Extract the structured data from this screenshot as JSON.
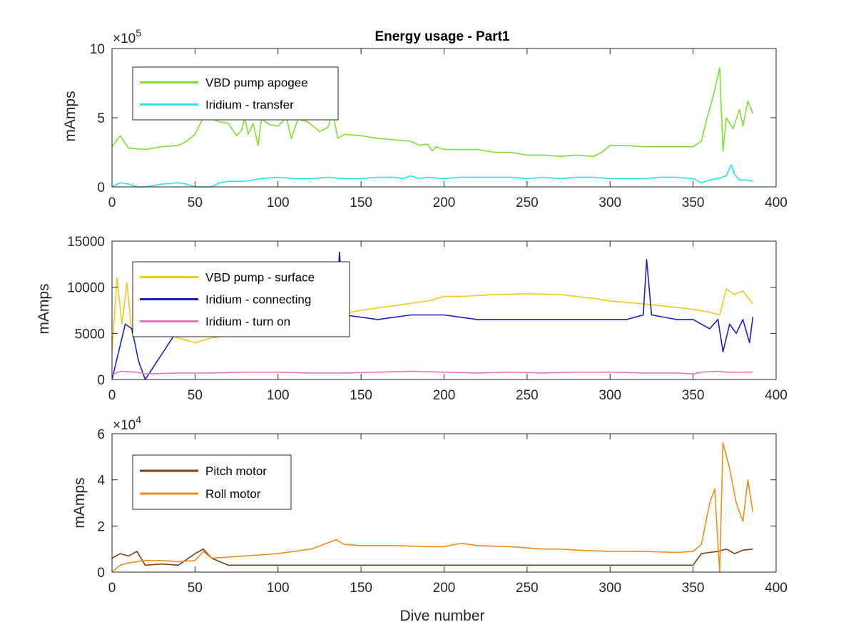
{
  "chart_data": [
    {
      "type": "line",
      "title": "Energy usage - Part1",
      "ylabel": "mAmps",
      "xlabel": "",
      "xlim": [
        0,
        400
      ],
      "ylim": [
        0,
        1000000
      ],
      "scale_multiplier": "×10",
      "scale_exponent": "5",
      "xticks": [
        0,
        50,
        100,
        150,
        200,
        250,
        300,
        350,
        400
      ],
      "yticks": [
        0,
        500000,
        1000000
      ],
      "yticklabels": [
        "0",
        "5",
        "10"
      ],
      "legend_position": "top-left",
      "series": [
        {
          "name": "VBD pump apogee",
          "color": "#7fe02e",
          "x": [
            0,
            5,
            10,
            20,
            30,
            40,
            45,
            50,
            55,
            60,
            65,
            70,
            75,
            78,
            80,
            82,
            85,
            88,
            90,
            95,
            100,
            105,
            108,
            112,
            118,
            125,
            130,
            133,
            136,
            140,
            150,
            160,
            170,
            180,
            185,
            190,
            193,
            195,
            200,
            210,
            220,
            230,
            240,
            250,
            260,
            270,
            280,
            290,
            295,
            300,
            310,
            320,
            330,
            340,
            350,
            355,
            358,
            362,
            366,
            368,
            370,
            374,
            378,
            380,
            383,
            386
          ],
          "values": [
            290000,
            370000,
            280000,
            270000,
            290000,
            300000,
            330000,
            380000,
            500000,
            490000,
            470000,
            460000,
            370000,
            410000,
            500000,
            380000,
            460000,
            300000,
            490000,
            450000,
            440000,
            500000,
            350000,
            490000,
            470000,
            400000,
            430000,
            540000,
            350000,
            380000,
            370000,
            350000,
            340000,
            330000,
            300000,
            310000,
            260000,
            290000,
            270000,
            270000,
            270000,
            250000,
            250000,
            230000,
            230000,
            220000,
            230000,
            220000,
            250000,
            300000,
            300000,
            290000,
            290000,
            290000,
            290000,
            330000,
            480000,
            650000,
            860000,
            260000,
            500000,
            420000,
            560000,
            440000,
            620000,
            530000
          ]
        },
        {
          "name": "Iridium - transfer",
          "color": "#22e6f0",
          "x": [
            0,
            5,
            10,
            15,
            20,
            30,
            40,
            45,
            50,
            55,
            60,
            65,
            70,
            80,
            90,
            100,
            110,
            120,
            130,
            140,
            150,
            160,
            170,
            175,
            180,
            185,
            190,
            200,
            210,
            220,
            230,
            240,
            250,
            260,
            270,
            280,
            290,
            300,
            310,
            320,
            330,
            340,
            350,
            355,
            360,
            365,
            370,
            373,
            375,
            378,
            382,
            386
          ],
          "values": [
            0,
            30000,
            20000,
            0,
            0,
            20000,
            30000,
            20000,
            0,
            0,
            0,
            30000,
            40000,
            40000,
            60000,
            70000,
            60000,
            60000,
            70000,
            60000,
            60000,
            70000,
            70000,
            60000,
            80000,
            60000,
            70000,
            60000,
            70000,
            70000,
            70000,
            70000,
            60000,
            70000,
            60000,
            70000,
            70000,
            60000,
            60000,
            60000,
            70000,
            70000,
            60000,
            30000,
            50000,
            60000,
            80000,
            160000,
            90000,
            50000,
            50000,
            40000
          ]
        }
      ]
    },
    {
      "type": "line",
      "title": "",
      "ylabel": "mAmps",
      "xlabel": "",
      "xlim": [
        0,
        400
      ],
      "ylim": [
        0,
        15000
      ],
      "xticks": [
        0,
        50,
        100,
        150,
        200,
        250,
        300,
        350,
        400
      ],
      "yticks": [
        0,
        5000,
        10000,
        15000
      ],
      "yticklabels": [
        "0",
        "5000",
        "10000",
        "15000"
      ],
      "legend_position": "top-left",
      "series": [
        {
          "name": "VBD pump - surface",
          "color": "#f2c91a",
          "x": [
            0,
            3,
            6,
            9,
            12,
            15,
            20,
            30,
            40,
            50,
            60,
            80,
            100,
            120,
            135,
            150,
            170,
            190,
            200,
            210,
            230,
            250,
            270,
            290,
            300,
            320,
            340,
            350,
            360,
            366,
            370,
            375,
            380,
            386
          ],
          "values": [
            3000,
            11000,
            6000,
            10500,
            5000,
            8000,
            5000,
            5000,
            4500,
            4000,
            4500,
            5000,
            6000,
            6500,
            7000,
            7500,
            8000,
            8500,
            9000,
            9000,
            9200,
            9300,
            9200,
            8800,
            8500,
            8200,
            7800,
            7600,
            7300,
            7000,
            9800,
            9200,
            9600,
            8200
          ]
        },
        {
          "name": "Iridium - connecting",
          "color": "#1c1ec2",
          "x": [
            0,
            4,
            8,
            12,
            16,
            20,
            40,
            60,
            80,
            100,
            120,
            135,
            137,
            140,
            160,
            180,
            200,
            220,
            240,
            260,
            280,
            300,
            310,
            320,
            322,
            325,
            340,
            350,
            355,
            360,
            365,
            368,
            372,
            376,
            380,
            384,
            386
          ],
          "values": [
            0,
            3000,
            6000,
            5500,
            2000,
            0,
            5500,
            6000,
            6500,
            7000,
            7000,
            7500,
            13800,
            7000,
            6500,
            7000,
            7000,
            6500,
            6500,
            6500,
            6500,
            6500,
            6500,
            7000,
            13000,
            7000,
            6500,
            6500,
            6000,
            5500,
            6500,
            3000,
            6000,
            5000,
            6500,
            4000,
            6800
          ]
        },
        {
          "name": "Iridium - turn on",
          "color": "#e873c4",
          "x": [
            0,
            5,
            15,
            20,
            40,
            60,
            80,
            100,
            120,
            140,
            160,
            180,
            200,
            220,
            240,
            260,
            280,
            300,
            320,
            340,
            350,
            355,
            365,
            370,
            380,
            386
          ],
          "values": [
            500,
            900,
            800,
            600,
            700,
            700,
            800,
            800,
            700,
            700,
            800,
            900,
            800,
            700,
            800,
            700,
            800,
            800,
            700,
            700,
            600,
            800,
            900,
            800,
            800,
            800
          ]
        }
      ]
    },
    {
      "type": "line",
      "title": "",
      "ylabel": "mAmps",
      "xlabel": "Dive number",
      "xlim": [
        0,
        400
      ],
      "ylim": [
        0,
        60000
      ],
      "scale_multiplier": "×10",
      "scale_exponent": "4",
      "xticks": [
        0,
        50,
        100,
        150,
        200,
        250,
        300,
        350,
        400
      ],
      "yticks": [
        0,
        20000,
        40000,
        60000
      ],
      "yticklabels": [
        "0",
        "2",
        "4",
        "6"
      ],
      "legend_position": "top-left",
      "series": [
        {
          "name": "Pitch motor",
          "color": "#7b3f12",
          "x": [
            0,
            5,
            10,
            15,
            20,
            30,
            40,
            50,
            55,
            60,
            70,
            80,
            100,
            120,
            140,
            160,
            180,
            200,
            220,
            240,
            260,
            280,
            300,
            320,
            340,
            350,
            355,
            360,
            365,
            370,
            375,
            380,
            386
          ],
          "values": [
            6000,
            8000,
            7000,
            9000,
            3000,
            3500,
            3000,
            8000,
            10000,
            6000,
            3000,
            3000,
            3000,
            3000,
            3000,
            3000,
            3000,
            3000,
            3000,
            3000,
            3000,
            3000,
            3000,
            3000,
            3000,
            3000,
            8000,
            8500,
            9000,
            10000,
            8000,
            9500,
            10000
          ]
        },
        {
          "name": "Roll motor",
          "color": "#ee8e1a",
          "x": [
            0,
            5,
            10,
            20,
            30,
            40,
            50,
            55,
            60,
            70,
            80,
            100,
            120,
            135,
            140,
            150,
            170,
            190,
            200,
            210,
            220,
            240,
            260,
            270,
            280,
            300,
            320,
            340,
            350,
            355,
            360,
            363,
            366,
            368,
            372,
            376,
            380,
            383,
            386
          ],
          "values": [
            0,
            3000,
            4000,
            5000,
            5000,
            4500,
            5000,
            9000,
            6000,
            6500,
            7000,
            8000,
            10000,
            14000,
            12000,
            11500,
            11500,
            11000,
            11000,
            12500,
            11500,
            11000,
            10000,
            10000,
            9500,
            9000,
            9000,
            8500,
            9000,
            12000,
            30000,
            36000,
            0,
            56000,
            45000,
            30000,
            22000,
            40000,
            26000
          ]
        }
      ]
    }
  ],
  "icons": {
    "legend_swatch": "line-swatch"
  }
}
